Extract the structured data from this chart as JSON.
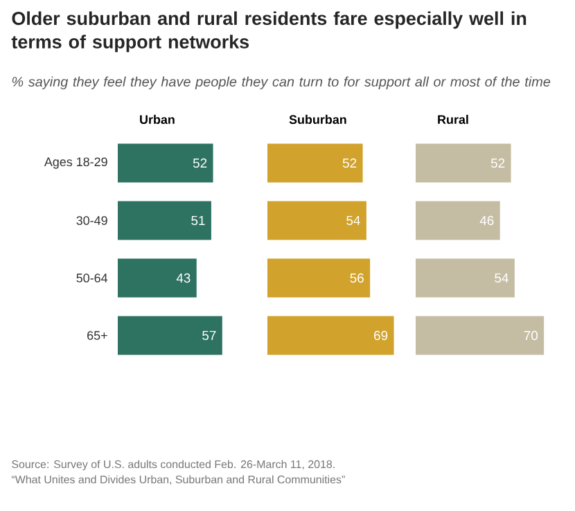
{
  "chart_data": [
    {
      "type": "other",
      "title": "Older suburban and rural residents fare especially well in terms of support networks",
      "subtitle": "% saying they feel they have people they can turn to for support all or most of the time",
      "annotations": [
        "Source: Survey of U.S. adults conducted Feb. 26-March 11, 2018.",
        "“What Unites and Divides Urban, Suburban and Rural Communities”"
      ]
    },
    {
      "type": "bar",
      "orientation": "horizontal",
      "title": "Urban",
      "categories": [
        "Ages 18-29",
        "30-49",
        "50-64",
        "65+"
      ],
      "values": [
        52,
        51,
        43,
        57
      ],
      "color": "#2e7261",
      "data_labels": true
    },
    {
      "type": "bar",
      "orientation": "horizontal",
      "title": "Suburban",
      "categories": [
        null,
        null,
        null,
        null
      ],
      "values": [
        52,
        54,
        56,
        69
      ],
      "color": "#d1a22c",
      "data_labels": true
    },
    {
      "type": "bar",
      "orientation": "horizontal",
      "title": "Rural",
      "categories": [
        null,
        null,
        null,
        null
      ],
      "values": [
        52,
        46,
        54,
        70
      ],
      "color": "#c5bda3",
      "data_labels": true
    }
  ]
}
